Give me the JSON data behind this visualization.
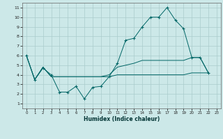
{
  "xlabel": "Humidex (Indice chaleur)",
  "bg_color": "#cce8e8",
  "grid_color": "#aacccc",
  "line_color": "#006666",
  "xlim": [
    -0.5,
    23.5
  ],
  "ylim": [
    0.5,
    11.5
  ],
  "x_ticks": [
    0,
    1,
    2,
    3,
    4,
    5,
    6,
    7,
    8,
    9,
    10,
    11,
    12,
    13,
    14,
    15,
    16,
    17,
    18,
    19,
    20,
    21,
    22,
    23
  ],
  "y_ticks": [
    1,
    2,
    3,
    4,
    5,
    6,
    7,
    8,
    9,
    10,
    11
  ],
  "series": [
    {
      "x": [
        0,
        1,
        2,
        3,
        4,
        5,
        6,
        7,
        8,
        9,
        10,
        11,
        12,
        13,
        14,
        15,
        16,
        17,
        18,
        19,
        20,
        21,
        22
      ],
      "y": [
        6.0,
        3.5,
        4.7,
        4.0,
        2.2,
        2.2,
        2.8,
        1.5,
        2.7,
        2.8,
        3.8,
        5.2,
        7.6,
        7.8,
        9.0,
        10.0,
        10.0,
        11.0,
        9.7,
        8.8,
        5.8,
        5.8,
        4.2
      ],
      "marker": true
    },
    {
      "x": [
        0,
        1,
        2,
        3,
        4,
        5,
        6,
        7,
        8,
        9,
        10,
        11,
        12,
        13,
        14,
        15,
        16,
        17,
        18,
        19,
        20,
        21,
        22
      ],
      "y": [
        6.0,
        3.5,
        4.8,
        3.8,
        3.8,
        3.8,
        3.8,
        3.8,
        3.8,
        3.8,
        4.0,
        4.8,
        5.0,
        5.2,
        5.5,
        5.5,
        5.5,
        5.5,
        5.5,
        5.5,
        5.8,
        5.8,
        4.2
      ],
      "marker": false
    },
    {
      "x": [
        0,
        1,
        2,
        3,
        4,
        5,
        6,
        7,
        8,
        9,
        10,
        11,
        12,
        13,
        14,
        15,
        16,
        17,
        18,
        19,
        20,
        21,
        22
      ],
      "y": [
        6.0,
        3.5,
        4.8,
        3.8,
        3.8,
        3.8,
        3.8,
        3.8,
        3.8,
        3.8,
        3.8,
        4.0,
        4.0,
        4.0,
        4.0,
        4.0,
        4.0,
        4.0,
        4.0,
        4.0,
        4.2,
        4.2,
        4.2
      ],
      "marker": false
    }
  ]
}
